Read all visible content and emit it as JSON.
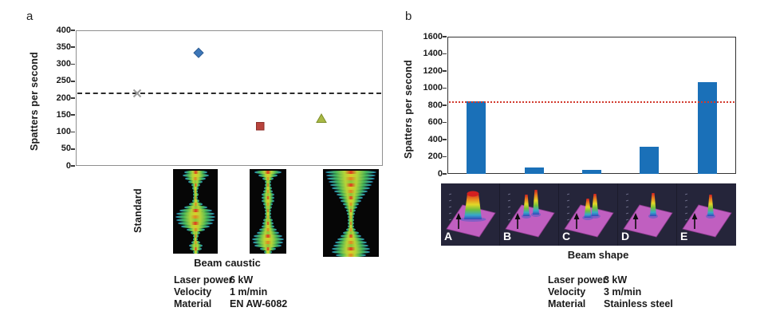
{
  "panels": {
    "a": {
      "label": "a",
      "ylabel": "Spatters per second",
      "standard_label": "Standard",
      "caption": "Beam caustic",
      "info": [
        {
          "label": "Laser power",
          "value": "6 kW"
        },
        {
          "label": "Velocity",
          "value": "1 m/min"
        },
        {
          "label": "Material",
          "value": "EN AW-6082"
        }
      ]
    },
    "b": {
      "label": "b",
      "ylabel": "Spatters per second",
      "caption": "Beam shape",
      "info": [
        {
          "label": "Laser power",
          "value": "3 kW"
        },
        {
          "label": "Velocity",
          "value": "3 m/min"
        },
        {
          "label": "Material",
          "value": "Stainless steel"
        }
      ]
    }
  },
  "chart_data": [
    {
      "type": "scatter",
      "panel": "a",
      "title": "",
      "xlabel": "Beam caustic",
      "ylabel": "Spatters per second",
      "ylim": [
        0,
        400
      ],
      "ytick_step": 50,
      "grid": false,
      "legend": false,
      "x_categories": [
        "Standard",
        "beam-caustic-1",
        "beam-caustic-2",
        "beam-caustic-3"
      ],
      "points": [
        {
          "category": "Standard",
          "y": 215,
          "marker": "x",
          "color": "#9a9a9a"
        },
        {
          "category": "beam-caustic-1",
          "y": 335,
          "marker": "diamond",
          "color": "#3d77b8"
        },
        {
          "category": "beam-caustic-2",
          "y": 118,
          "marker": "square",
          "color": "#b8433c"
        },
        {
          "category": "beam-caustic-3",
          "y": 142,
          "marker": "triangle",
          "color": "#a8b844"
        }
      ],
      "reference_line": {
        "y": 215,
        "style": "dashed",
        "color": "#2b2b2b"
      }
    },
    {
      "type": "bar",
      "panel": "b",
      "title": "",
      "xlabel": "Beam shape",
      "ylabel": "Spatters per second",
      "ylim": [
        0,
        1600
      ],
      "ytick_step": 200,
      "grid": false,
      "legend": false,
      "categories": [
        "A",
        "B",
        "C",
        "D",
        "E"
      ],
      "values": [
        850,
        70,
        50,
        315,
        1070
      ],
      "bar_color": "#1a70b8",
      "reference_line": {
        "y": 840,
        "style": "dotted",
        "color": "#d23a2e"
      }
    }
  ]
}
